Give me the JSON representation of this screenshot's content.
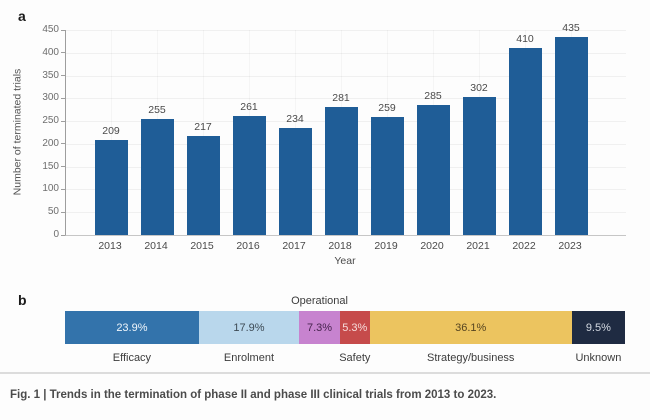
{
  "figure": {
    "caption": "Fig. 1 | Trends in the termination of phase II and phase III clinical trials from 2013 to 2023."
  },
  "panel_a": {
    "label": "a",
    "ylabel": "Number of terminated trials",
    "xlabel": "Year"
  },
  "panel_b": {
    "label": "b"
  },
  "chart_data": [
    {
      "type": "bar",
      "panel": "a",
      "title": "",
      "categories": [
        "2013",
        "2014",
        "2015",
        "2016",
        "2017",
        "2018",
        "2019",
        "2020",
        "2021",
        "2022",
        "2023"
      ],
      "values": [
        209,
        255,
        217,
        261,
        234,
        281,
        259,
        285,
        302,
        410,
        435
      ],
      "xlabel": "Year",
      "ylabel": "Number of terminated trials",
      "ylim": [
        0,
        450
      ],
      "ytick_step": 50,
      "bar_color": "#1f5d97",
      "grid": true,
      "value_labels": true,
      "legend": "none"
    },
    {
      "type": "bar",
      "subtype": "stacked_horizontal_percentage",
      "panel": "b",
      "title": "",
      "total": 100,
      "segments": [
        {
          "label": "Efficacy",
          "value": 23.9,
          "display": "23.9%",
          "color": "#3373ab",
          "text_color": "#f0f6fb",
          "label_position": "below"
        },
        {
          "label": "Enrolment",
          "value": 17.9,
          "display": "17.9%",
          "color": "#b9d7ec",
          "text_color": "#3d4a54",
          "label_position": "below"
        },
        {
          "label": "Operational",
          "value": 7.3,
          "display": "7.3%",
          "color": "#c783cf",
          "text_color": "#46234e",
          "label_position": "above"
        },
        {
          "label": "Safety",
          "value": 5.3,
          "display": "5.3%",
          "color": "#c64b4b",
          "text_color": "#f6dcdb",
          "label_position": "below"
        },
        {
          "label": "Strategy/business",
          "value": 36.1,
          "display": "36.1%",
          "color": "#ecc45f",
          "text_color": "#554420",
          "label_position": "below"
        },
        {
          "label": "Unknown",
          "value": 9.5,
          "display": "9.5%",
          "color": "#1f2b42",
          "text_color": "#d5dae2",
          "label_position": "below"
        }
      ]
    }
  ]
}
